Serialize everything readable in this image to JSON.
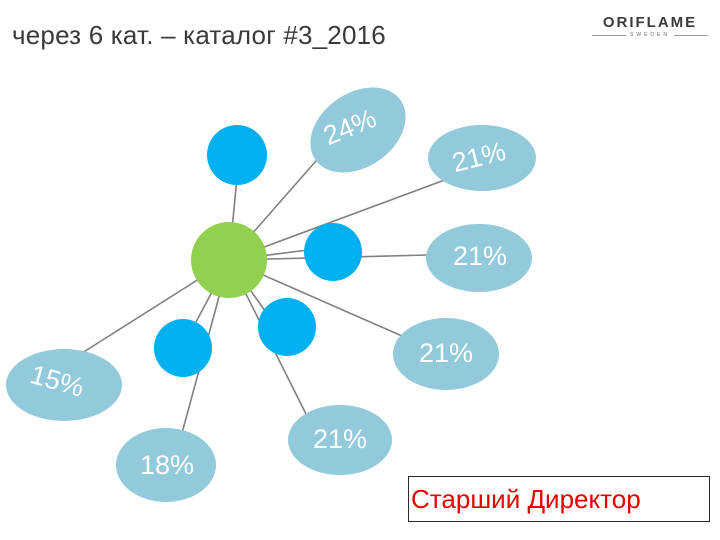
{
  "header": {
    "title": "через 6 кат. – каталог #3_2016"
  },
  "logo": {
    "brand": "ORIFLAME",
    "sub": "SWEDEN"
  },
  "colors": {
    "center_node": "#92d050",
    "blue_node": "#00b0f0",
    "oval": "#92c9db",
    "line": "#808080",
    "director_text": "#e60000"
  },
  "ovals": [
    {
      "id": "oval-24",
      "label": "24%"
    },
    {
      "id": "oval-21-top",
      "label": "21%"
    },
    {
      "id": "oval-21-mid",
      "label": "21%"
    },
    {
      "id": "oval-21-lower",
      "label": "21%"
    },
    {
      "id": "oval-15",
      "label": "15%"
    },
    {
      "id": "oval-18",
      "label": "18%"
    },
    {
      "id": "oval-21-bottom",
      "label": "21%"
    }
  ],
  "status": {
    "rank": "Старший Директор"
  }
}
